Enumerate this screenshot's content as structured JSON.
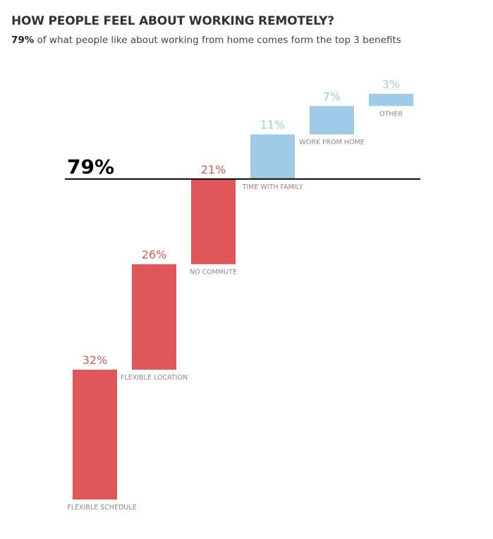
{
  "header": {
    "title": "HOW PEOPLE FEEL ABOUT WORKING REMOTELY?",
    "subtitle_bold": "79%",
    "subtitle_rest": " of what people like about working from home comes form the top 3 benefits"
  },
  "colors": {
    "top3": "#E15759",
    "others": "#A0CBE8",
    "label": "#888888",
    "reference_line": "#000000"
  },
  "chart_data": {
    "type": "bar",
    "subtype": "waterfall",
    "title": "HOW PEOPLE FEEL ABOUT WORKING REMOTELY?",
    "subtitle": "79% of what people like about working from home comes form the top 3 benefits",
    "categories": [
      "FLEXIBLE SCHEDULE",
      "FLEXIBLE LOCATION",
      "NO COMMUTE",
      "TIME WITH FAMILY",
      "WORK FROM HOME",
      "OTHER"
    ],
    "values": [
      32,
      26,
      21,
      11,
      7,
      3
    ],
    "value_labels": [
      "32%",
      "26%",
      "21%",
      "11%",
      "7%",
      "3%"
    ],
    "groups": [
      "top3",
      "top3",
      "top3",
      "other",
      "other",
      "other"
    ],
    "reference_line": {
      "value": 79,
      "label": "79%"
    },
    "ylim": [
      0,
      100
    ],
    "xlabel": "",
    "ylabel": "",
    "grid": false,
    "legend": "none"
  }
}
